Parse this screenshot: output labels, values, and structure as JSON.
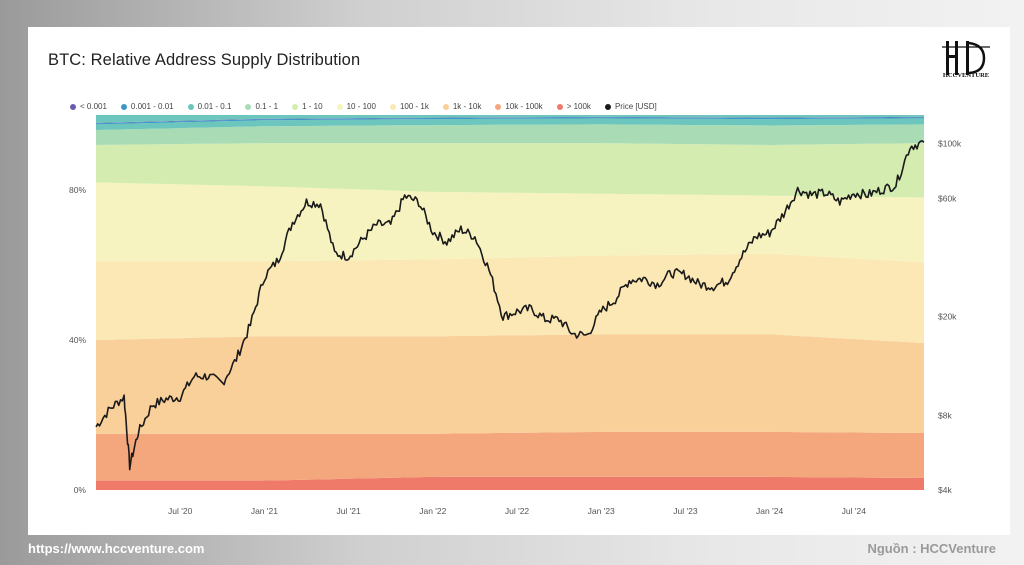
{
  "header": {
    "title": "BTC: Relative Address Supply Distribution"
  },
  "logo": {
    "text": "HCCVENTURE"
  },
  "footer": {
    "url": "https://www.hccventure.com",
    "source": "Nguồn : HCCVenture"
  },
  "chart_data": {
    "type": "area",
    "title": "BTC: Relative Address Supply Distribution",
    "stacked": true,
    "x_start": "2020-01",
    "x_end": "2024-12",
    "x_ticks": [
      "Jul '20",
      "Jan '21",
      "Jul '21",
      "Jan '22",
      "Jul '22",
      "Jan '23",
      "Jul '23",
      "Jan '24",
      "Jul '24"
    ],
    "x_tick_months": [
      6,
      12,
      18,
      24,
      30,
      36,
      42,
      48,
      54
    ],
    "y_left": {
      "ticks": [
        "0%",
        "40%",
        "80%"
      ],
      "values": [
        0,
        40,
        80
      ],
      "range": [
        0,
        100
      ]
    },
    "y_right": {
      "ticks": [
        "$4k",
        "$8k",
        "$20k",
        "$60k",
        "$100k"
      ],
      "values": [
        4000,
        8000,
        20000,
        60000,
        100000
      ],
      "scale": "log",
      "range": [
        4000,
        130000
      ]
    },
    "legend_position": "top",
    "x_sample_months": [
      0,
      12,
      24,
      36,
      48,
      59
    ],
    "series": [
      {
        "name": "> 100k",
        "color": "#ef7a6a",
        "values": [
          2.5,
          2.5,
          3.5,
          3.5,
          3.5,
          3.2
        ]
      },
      {
        "name": "10k - 100k",
        "color": "#f4a77c",
        "values": [
          12.5,
          12.5,
          11.5,
          12.0,
          12.0,
          12.0
        ]
      },
      {
        "name": "1k - 10k",
        "color": "#f9cf9a",
        "values": [
          25.0,
          26.0,
          26.0,
          26.0,
          26.0,
          24.0
        ]
      },
      {
        "name": "100 - 1k",
        "color": "#fbe8b4",
        "values": [
          21.0,
          20.0,
          20.5,
          21.0,
          21.5,
          21.5
        ]
      },
      {
        "name": "10 - 100",
        "color": "#f6f3c0",
        "values": [
          21.0,
          20.0,
          18.0,
          16.5,
          15.5,
          17.3
        ]
      },
      {
        "name": "1 - 10",
        "color": "#d4ecb0",
        "values": [
          10.0,
          11.5,
          13.0,
          13.5,
          13.5,
          14.5
        ]
      },
      {
        "name": "0.1 - 1",
        "color": "#a9dcb4",
        "values": [
          4.0,
          4.5,
          4.8,
          5.0,
          5.2,
          5.0
        ]
      },
      {
        "name": "0.01 - 0.1",
        "color": "#6cc6bd",
        "values": [
          1.5,
          1.6,
          1.6,
          1.6,
          1.7,
          1.6
        ]
      },
      {
        "name": "0.001 - 0.01",
        "color": "#3d98c8",
        "values": [
          0.3,
          0.3,
          0.3,
          0.3,
          0.3,
          0.3
        ]
      },
      {
        "name": "< 0.001",
        "color": "#6b5bb0",
        "values": [
          0.1,
          0.1,
          0.1,
          0.1,
          0.1,
          0.1
        ]
      }
    ],
    "price": {
      "name": "Price [USD]",
      "color": "#1a1a1a",
      "months": [
        0,
        1,
        2,
        2.4,
        3,
        4,
        5,
        6,
        7,
        8,
        9,
        10,
        11,
        12,
        13,
        14,
        15,
        16,
        17,
        18,
        19,
        20,
        21,
        22,
        23,
        24,
        25,
        26,
        27,
        28,
        29,
        30,
        31,
        32,
        33,
        34,
        35,
        36,
        37,
        38,
        39,
        40,
        41,
        42,
        43,
        44,
        45,
        46,
        47,
        48,
        49,
        50,
        51,
        52,
        53,
        54,
        55,
        56,
        57,
        58,
        59
      ],
      "values": [
        7200,
        8500,
        9500,
        5000,
        6800,
        8800,
        9300,
        9500,
        11500,
        11500,
        10800,
        13500,
        18500,
        29000,
        34000,
        48000,
        58000,
        57000,
        36000,
        35000,
        41000,
        47000,
        47000,
        61000,
        58000,
        44000,
        40000,
        45000,
        42000,
        31000,
        20000,
        21000,
        21500,
        19500,
        19500,
        17000,
        16800,
        21000,
        23500,
        28000,
        28500,
        27000,
        30000,
        29500,
        27000,
        26500,
        28000,
        35000,
        42000,
        43500,
        52000,
        65000,
        62000,
        63000,
        58000,
        63000,
        62000,
        65000,
        68000,
        97000,
        101000
      ]
    }
  }
}
